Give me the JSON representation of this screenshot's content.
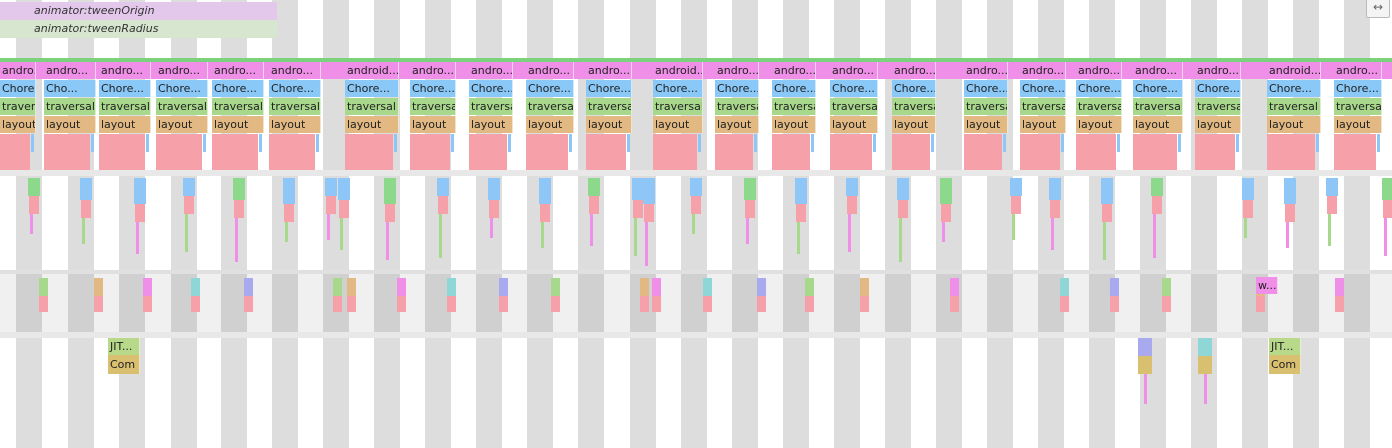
{
  "counters": [
    {
      "label": "animator:tweenOrigin",
      "color": "#e3c8ec"
    },
    {
      "label": "animator:tweenRadius",
      "color": "#d7e6cf"
    }
  ],
  "frame_labels": {
    "android": "andro...",
    "android_wide": "android....",
    "choreo": "Chore...",
    "choreo_short": "Cho...",
    "traversal": "traversal",
    "layout": "layout"
  },
  "worker_labels": {
    "w": "w...",
    "jit": "JIT...",
    "com": "Com"
  },
  "colors": {
    "android": "#f08fe8",
    "choreo": "#89c8f7",
    "traversal": "#a8d88c",
    "layout": "#e2b982",
    "pink": "#f6a0aa",
    "green": "#8cd98c",
    "blue": "#8ec6f7",
    "jit": "#b9d98a",
    "com": "#d8c070",
    "top_bar": "#7cd17c"
  },
  "toolbar": {
    "expand_icon": "↔"
  }
}
